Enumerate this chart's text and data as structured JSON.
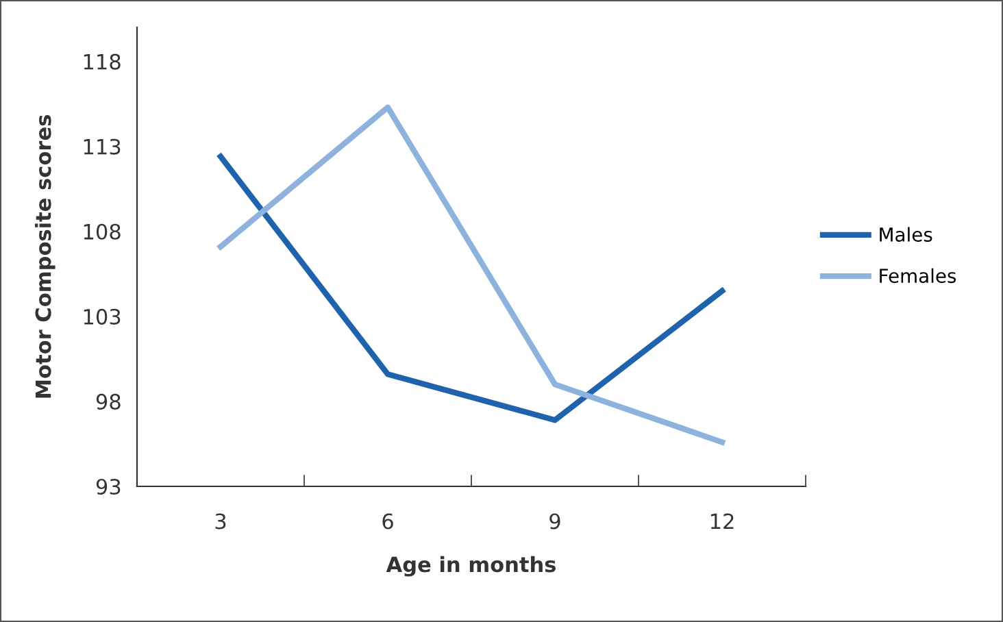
{
  "chart_data": {
    "type": "line",
    "xlabel": "Age in months",
    "ylabel": "Motor Composite scores",
    "categories": [
      "3",
      "6",
      "9",
      "12"
    ],
    "series": [
      {
        "name": "Males",
        "color": "#1f63ad",
        "values": [
          112.4,
          99.6,
          96.9,
          104.5
        ]
      },
      {
        "name": "Females",
        "color": "#8db3dd",
        "values": [
          107.1,
          115.3,
          99.0,
          95.6
        ]
      }
    ],
    "ylim": [
      93,
      120
    ],
    "yticks": [
      93,
      98,
      103,
      108,
      113,
      118
    ],
    "grid": false,
    "legend": "right",
    "marker": "none",
    "line_style": "solid"
  }
}
